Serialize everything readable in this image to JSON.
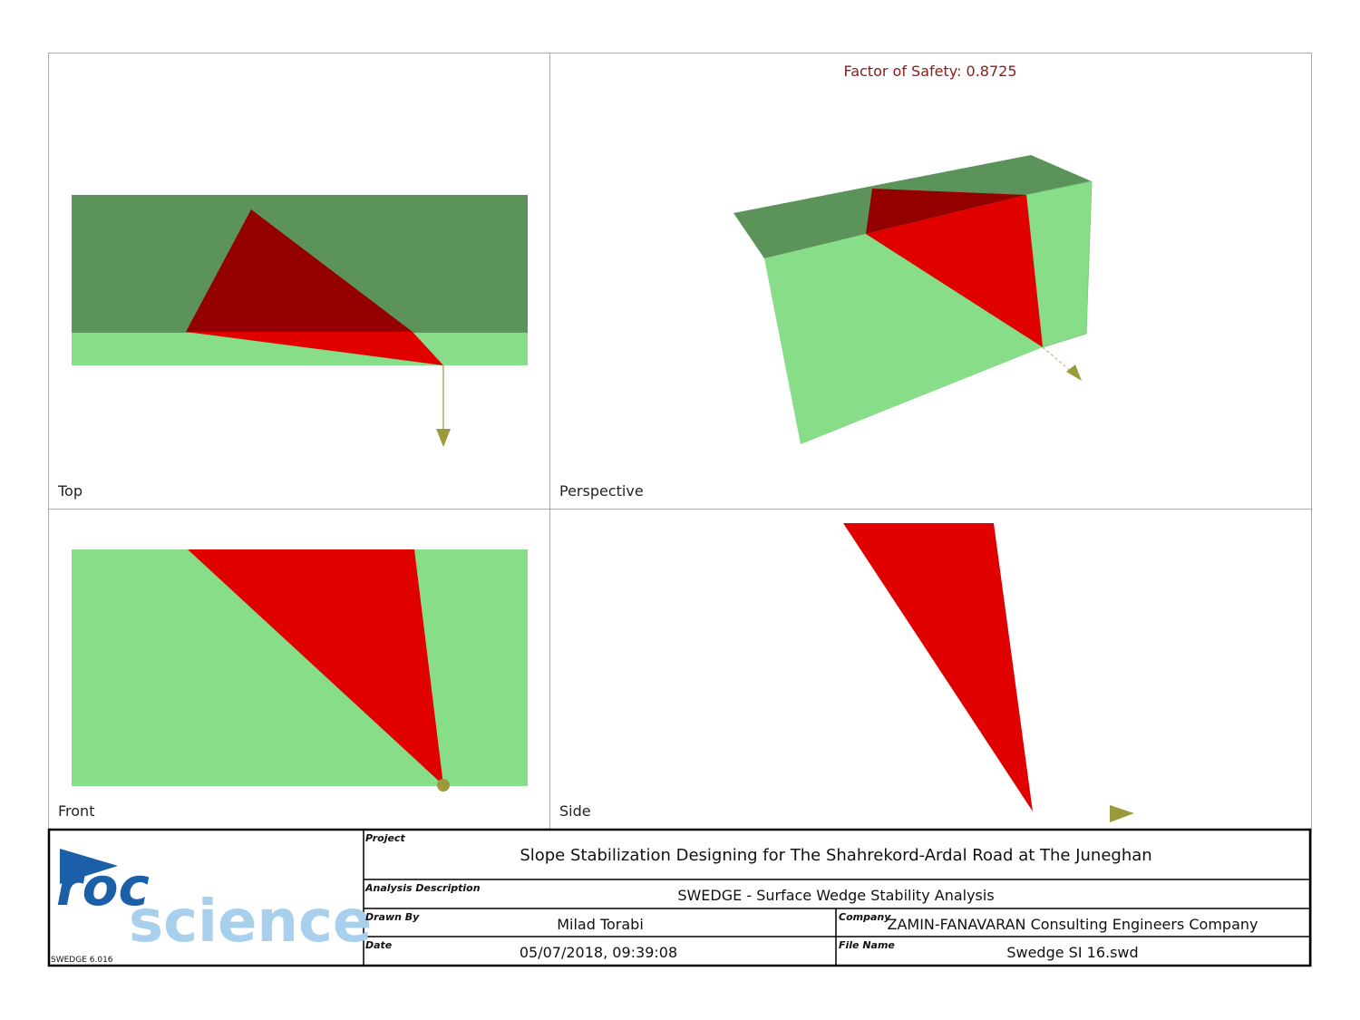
{
  "factor_of_safety": "Factor of Safety: 0.8725",
  "views": {
    "top": "Top",
    "perspective": "Perspective",
    "front": "Front",
    "side": "Side"
  },
  "title_block": {
    "logo": {
      "roc": "roc",
      "science": "science",
      "version": "SWEDGE 6.016"
    },
    "project": {
      "label": "Project",
      "value": "Slope Stabilization Designing for The Shahrekord-Ardal Road at The Juneghan"
    },
    "analysis_description": {
      "label": "Analysis Description",
      "value": "SWEDGE - Surface Wedge Stability Analysis"
    },
    "drawn_by": {
      "label": "Drawn By",
      "value": "Milad Torabi"
    },
    "company": {
      "label": "Company",
      "value": "ZAMIN-FANAVARAN Consulting Engineers Company"
    },
    "date": {
      "label": "Date",
      "value": "05/07/2018, 09:39:08"
    },
    "file_name": {
      "label": "File Name",
      "value": "Swedge SI 16.swd"
    }
  }
}
